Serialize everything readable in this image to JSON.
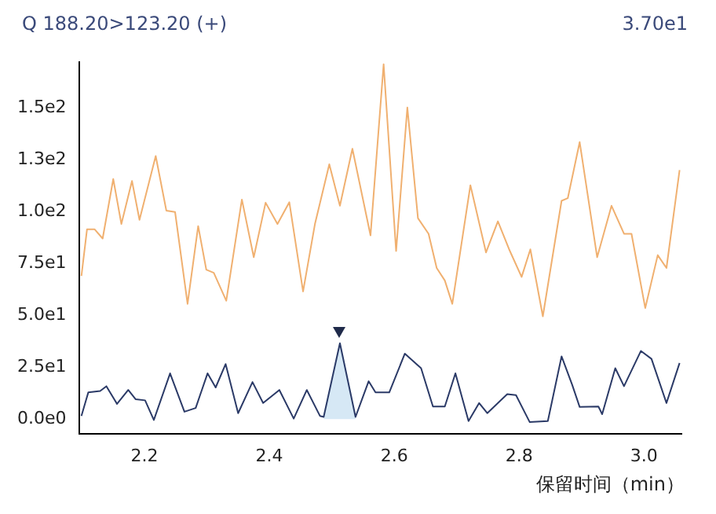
{
  "chart_data": {
    "type": "line",
    "title": "Q 188.20>123.20 (+)",
    "annotations": [
      "3.70e1"
    ],
    "xlabel": "保留时间（min）",
    "xlim": [
      2.095,
      3.06
    ],
    "xticks": [
      2.2,
      2.4,
      2.6,
      2.8,
      {
        "value": 3.0,
        "label": "3.0"
      }
    ],
    "ylim": [
      -7,
      172
    ],
    "yticks": [
      {
        "value": 0,
        "label": "0.0e0"
      },
      {
        "value": 25,
        "label": "2.5e1"
      },
      {
        "value": 50,
        "label": "5.0e1"
      },
      {
        "value": 75,
        "label": "7.5e1"
      },
      {
        "value": 100,
        "label": "1.0e2"
      },
      {
        "value": 125,
        "label": "1.3e2"
      },
      {
        "value": 150,
        "label": "1.5e2"
      }
    ],
    "grid": false,
    "legend": false,
    "marker": "none",
    "series": [
      {
        "type": "line",
        "color": "#f0b070",
        "x": [
          2.099,
          2.108,
          2.12,
          2.133,
          2.15,
          2.163,
          2.18,
          2.192,
          2.218,
          2.235,
          2.249,
          2.269,
          2.286,
          2.299,
          2.311,
          2.331,
          2.356,
          2.375,
          2.394,
          2.413,
          2.432,
          2.454,
          2.473,
          2.496,
          2.513,
          2.533,
          2.562,
          2.583,
          2.603,
          2.621,
          2.638,
          2.655,
          2.668,
          2.681,
          2.693,
          2.722,
          2.747,
          2.766,
          2.784,
          2.804,
          2.818,
          2.838,
          2.868,
          2.878,
          2.897,
          2.925,
          2.948,
          2.968,
          2.98,
          3.002,
          3.022,
          3.036,
          3.057
        ],
        "values": [
          69,
          91.5,
          91.5,
          87,
          115.7,
          94,
          114.8,
          96,
          126.8,
          100.5,
          99.8,
          55.5,
          93,
          72,
          70.5,
          57,
          105.8,
          78,
          104.3,
          94,
          104.5,
          61.5,
          94,
          122.8,
          102.8,
          130.3,
          88.5,
          171,
          81,
          150.2,
          96.8,
          89.3,
          72.8,
          66.8,
          55.5,
          112.7,
          80.3,
          95.3,
          81.8,
          68.5,
          81.8,
          49.5,
          105.2,
          106.5,
          133.5,
          78,
          102.8,
          89.3,
          89.3,
          53.5,
          79,
          72.8,
          120
        ]
      },
      {
        "type": "line",
        "color": "#2b3a67",
        "x": [
          2.099,
          2.11,
          2.129,
          2.139,
          2.156,
          2.174,
          2.186,
          2.201,
          2.215,
          2.241,
          2.264,
          2.282,
          2.301,
          2.314,
          2.33,
          2.35,
          2.373,
          2.39,
          2.416,
          2.439,
          2.46,
          2.481,
          2.487,
          2.513,
          2.538,
          2.559,
          2.57,
          2.592,
          2.617,
          2.643,
          2.662,
          2.681,
          2.698,
          2.719,
          2.736,
          2.749,
          2.781,
          2.795,
          2.817,
          2.846,
          2.868,
          2.885,
          2.897,
          2.927,
          2.933,
          2.954,
          2.968,
          2.995,
          3.012,
          3.036,
          3.057
        ],
        "values": [
          1.5,
          12.8,
          13.5,
          15.8,
          7.3,
          14,
          9.5,
          9,
          -0.5,
          22,
          3.5,
          5.3,
          22,
          15.2,
          26.5,
          2.8,
          17.8,
          7.7,
          14,
          0.2,
          14,
          1.5,
          1,
          36.5,
          1,
          18.2,
          12.8,
          12.8,
          31.5,
          24.5,
          6,
          6,
          22,
          -1,
          7.7,
          2.8,
          12,
          11.5,
          -1.5,
          -1,
          30.2,
          16.5,
          5.8,
          6,
          2.3,
          24.5,
          15.8,
          32.8,
          29,
          7.7,
          27
        ]
      },
      {
        "type": "area",
        "color": "#d6e8f5",
        "x": [
          2.487,
          2.513,
          2.538
        ],
        "values": [
          1,
          36.5,
          1
        ]
      }
    ]
  }
}
